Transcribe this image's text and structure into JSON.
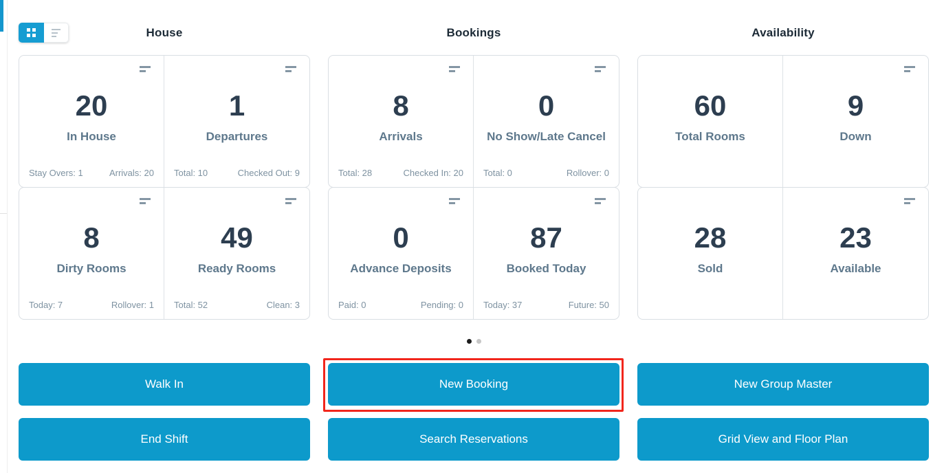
{
  "view_toggle": {
    "grid_icon": "grid-view",
    "list_icon": "list-view",
    "active": "grid"
  },
  "columns": [
    {
      "title": "House",
      "cards": [
        {
          "value": "20",
          "label": "In House",
          "stat_left": "Stay Overs: 1",
          "stat_right": "Arrivals: 20"
        },
        {
          "value": "1",
          "label": "Departures",
          "stat_left": "Total: 10",
          "stat_right": "Checked Out: 9"
        },
        {
          "value": "8",
          "label": "Dirty Rooms",
          "stat_left": "Today: 7",
          "stat_right": "Rollover: 1"
        },
        {
          "value": "49",
          "label": "Ready Rooms",
          "stat_left": "Total: 52",
          "stat_right": "Clean: 3"
        }
      ]
    },
    {
      "title": "Bookings",
      "cards": [
        {
          "value": "8",
          "label": "Arrivals",
          "stat_left": "Total: 28",
          "stat_right": "Checked In: 20"
        },
        {
          "value": "0",
          "label": "No Show/Late Cancel",
          "stat_left": "Total: 0",
          "stat_right": "Rollover: 0"
        },
        {
          "value": "0",
          "label": "Advance Deposits",
          "stat_left": "Paid: 0",
          "stat_right": "Pending: 0"
        },
        {
          "value": "87",
          "label": "Booked Today",
          "stat_left": "Today: 37",
          "stat_right": "Future: 50"
        }
      ]
    },
    {
      "title": "Availability",
      "cards": [
        {
          "value": "60",
          "label": "Total Rooms"
        },
        {
          "value": "9",
          "label": "Down"
        },
        {
          "value": "28",
          "label": "Sold"
        },
        {
          "value": "23",
          "label": "Available"
        }
      ]
    }
  ],
  "carousel": {
    "pages": 2,
    "active_page": 1
  },
  "actions": {
    "walk_in": "Walk In",
    "new_booking": "New Booking",
    "new_group_master": "New Group Master",
    "end_shift": "End Shift",
    "search_reservations": "Search Reservations",
    "grid_view_floor_plan": "Grid View and Floor Plan"
  },
  "highlight": {
    "target": "new_booking",
    "color": "#f1261c"
  },
  "colors": {
    "accent_blue": "#0d9acb",
    "toggle_blue": "#169dd2",
    "value_text": "#2d3e50",
    "label_text": "#5e788c"
  }
}
